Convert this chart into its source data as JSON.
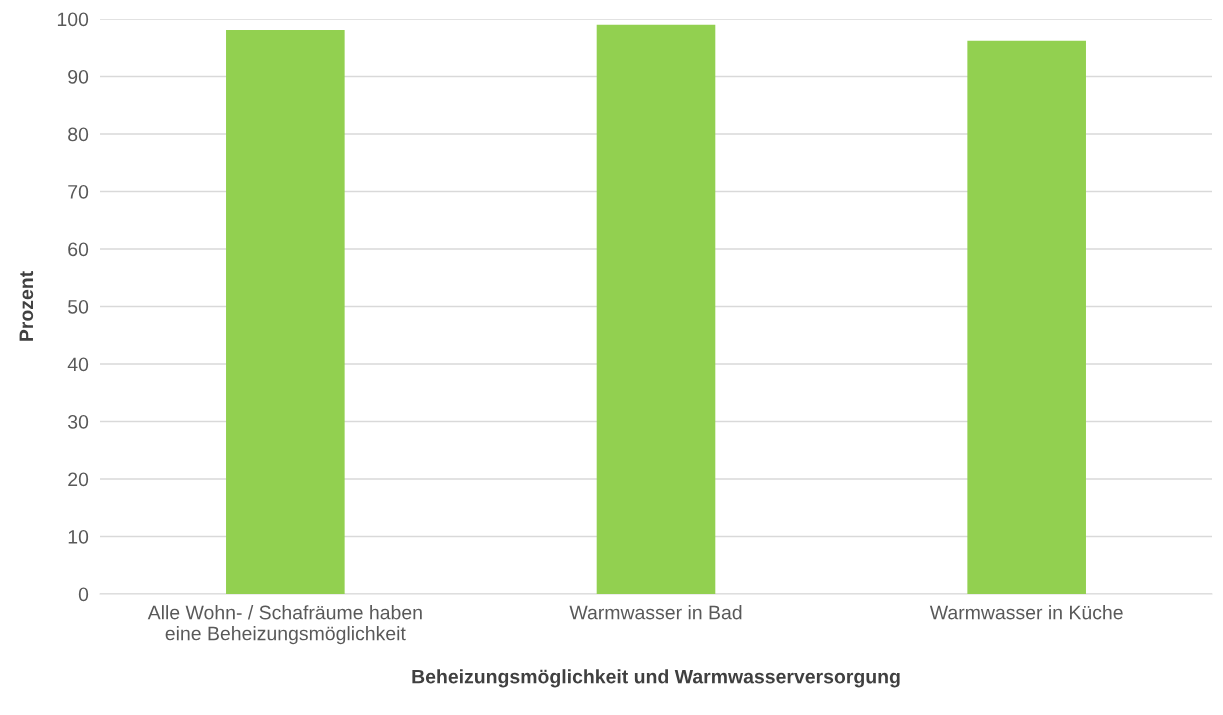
{
  "chart_data": {
    "type": "bar",
    "xlabel": "Beheizungsmöglichkeit und Warmwasserversorgung",
    "ylabel": "Prozent",
    "categories": [
      "Alle Wohn- / Schafräume haben\neine Beheizungsmöglichkeit",
      "Warmwasser in Bad",
      "Warmwasser in Küche"
    ],
    "values": [
      98.1,
      99.0,
      96.2
    ],
    "color": "#92d050",
    "ylim": [
      0,
      100
    ],
    "yticks": [
      0,
      10,
      20,
      30,
      40,
      50,
      60,
      70,
      80,
      90,
      100
    ],
    "grid": "y"
  }
}
